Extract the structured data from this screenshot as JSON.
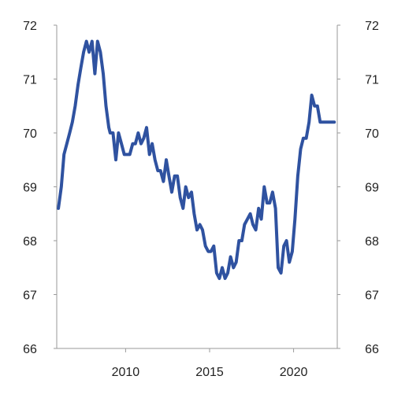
{
  "chart_data": {
    "type": "line",
    "title": "",
    "xlabel": "",
    "ylabel": "",
    "ylim": [
      66,
      72
    ],
    "xlim": [
      2005.9,
      2022.6
    ],
    "yticks": [
      "66",
      "67",
      "68",
      "69",
      "70",
      "71",
      "72"
    ],
    "xticks": [
      "2010",
      "2015",
      "2020"
    ],
    "grid": false,
    "legend": "none",
    "series_color": "#2f52a0",
    "series": [
      {
        "x": [
          2006.0,
          2006.17,
          2006.33,
          2006.5,
          2006.67,
          2006.83,
          2007.0,
          2007.17,
          2007.33,
          2007.5,
          2007.67,
          2007.83,
          2008.0,
          2008.17,
          2008.33,
          2008.5,
          2008.67,
          2008.83,
          2009.0,
          2009.08,
          2009.25,
          2009.42,
          2009.58,
          2009.75,
          2009.92,
          2010.08,
          2010.25,
          2010.42,
          2010.58,
          2010.75,
          2010.92,
          2011.08,
          2011.25,
          2011.42,
          2011.58,
          2011.75,
          2011.92,
          2012.08,
          2012.25,
          2012.42,
          2012.58,
          2012.75,
          2012.92,
          2013.08,
          2013.25,
          2013.42,
          2013.58,
          2013.75,
          2013.92,
          2014.08,
          2014.25,
          2014.42,
          2014.58,
          2014.75,
          2014.92,
          2015.08,
          2015.25,
          2015.42,
          2015.58,
          2015.75,
          2015.92,
          2016.08,
          2016.25,
          2016.42,
          2016.58,
          2016.75,
          2016.92,
          2017.08,
          2017.25,
          2017.42,
          2017.58,
          2017.75,
          2017.92,
          2018.08,
          2018.25,
          2018.42,
          2018.58,
          2018.75,
          2018.92,
          2019.08,
          2019.25,
          2019.42,
          2019.58,
          2019.75,
          2019.92,
          2020.08,
          2020.25,
          2020.42,
          2020.58,
          2020.75,
          2020.92,
          2021.08,
          2021.25,
          2021.42,
          2021.58,
          2021.75,
          2021.92,
          2022.08,
          2022.25,
          2022.42
        ],
        "y": [
          68.6,
          69.0,
          69.6,
          69.8,
          70.0,
          70.2,
          70.5,
          70.9,
          71.2,
          71.5,
          71.7,
          71.5,
          71.7,
          71.1,
          71.7,
          71.5,
          71.1,
          70.5,
          70.1,
          70.0,
          70.0,
          69.5,
          70.0,
          69.8,
          69.6,
          69.6,
          69.6,
          69.8,
          69.8,
          70.0,
          69.8,
          69.9,
          70.1,
          69.6,
          69.8,
          69.5,
          69.3,
          69.3,
          69.1,
          69.5,
          69.2,
          68.9,
          69.2,
          69.2,
          68.8,
          68.6,
          69.0,
          68.8,
          68.9,
          68.5,
          68.2,
          68.3,
          68.2,
          67.9,
          67.8,
          67.8,
          67.9,
          67.4,
          67.3,
          67.5,
          67.3,
          67.4,
          67.7,
          67.5,
          67.6,
          68.0,
          68.0,
          68.3,
          68.4,
          68.5,
          68.3,
          68.2,
          68.6,
          68.4,
          69.0,
          68.7,
          68.7,
          68.9,
          68.6,
          67.5,
          67.4,
          67.9,
          68.0,
          67.6,
          67.8,
          68.4,
          69.2,
          69.7,
          69.9,
          69.9,
          70.2,
          70.7,
          70.5,
          70.5,
          70.2,
          70.2,
          70.2,
          70.2,
          70.2,
          70.2
        ]
      }
    ]
  }
}
